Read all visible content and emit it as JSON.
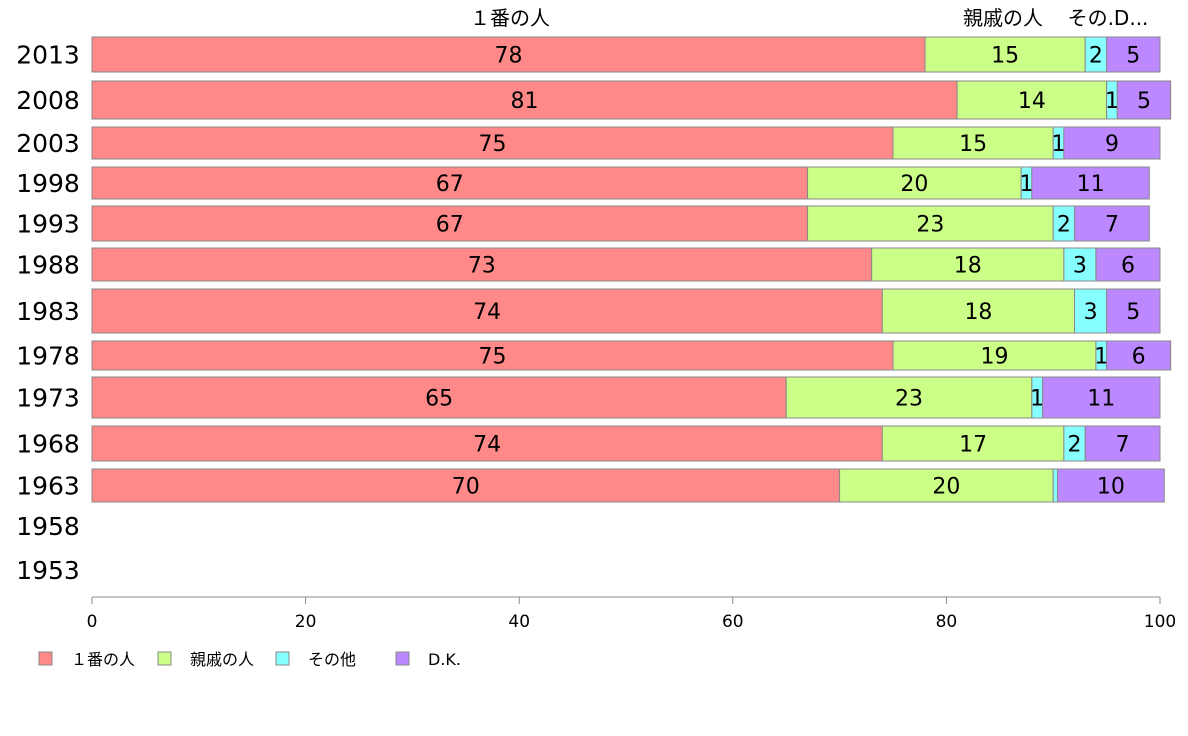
{
  "chart_data": {
    "type": "bar",
    "orientation": "horizontal",
    "stacked": true,
    "categories": [
      "2013",
      "2008",
      "2003",
      "1998",
      "1993",
      "1988",
      "1983",
      "1978",
      "1973",
      "1968",
      "1963",
      "1958",
      "1953"
    ],
    "series": [
      {
        "name": "１番の人",
        "color": "#ff8888",
        "values": [
          78,
          81,
          75,
          67,
          67,
          73,
          74,
          75,
          65,
          74,
          70,
          null,
          null
        ]
      },
      {
        "name": "親戚の人",
        "color": "#ccff88",
        "values": [
          15,
          14,
          15,
          20,
          23,
          18,
          18,
          19,
          23,
          17,
          20,
          null,
          null
        ]
      },
      {
        "name": "その他",
        "color": "#88ffff",
        "values": [
          2,
          1,
          1,
          1,
          2,
          3,
          3,
          1,
          1,
          2,
          0.4,
          null,
          null
        ]
      },
      {
        "name": "D.K.",
        "color": "#bb88ff",
        "values": [
          5,
          5,
          9,
          11,
          7,
          6,
          5,
          6,
          11,
          7,
          10,
          null,
          null
        ]
      }
    ],
    "value_labels": [
      [
        "78",
        "15",
        "2",
        "5"
      ],
      [
        "81",
        "14",
        "1",
        "5"
      ],
      [
        "75",
        "15",
        "1",
        "9"
      ],
      [
        "67",
        "20",
        "1",
        "11"
      ],
      [
        "67",
        "23",
        "2",
        "7"
      ],
      [
        "73",
        "18",
        "3",
        "6"
      ],
      [
        "74",
        "18",
        "3",
        "5"
      ],
      [
        "75",
        "19",
        "1",
        "6"
      ],
      [
        "65",
        "23",
        "1",
        "11"
      ],
      [
        "74",
        "17",
        "2",
        "7"
      ],
      [
        "70",
        "20",
        "",
        "10"
      ],
      [
        "",
        "",
        "",
        ""
      ],
      [
        "",
        "",
        "",
        ""
      ]
    ],
    "top_labels": [
      "１番の人",
      "親戚の人",
      "その.D..."
    ],
    "x_ticks": [
      "0",
      "20",
      "40",
      "60",
      "80",
      "100"
    ],
    "xlim": [
      0,
      100
    ],
    "grid": false,
    "legend_position": "bottom-left",
    "title": "",
    "xlabel": "",
    "ylabel": ""
  }
}
